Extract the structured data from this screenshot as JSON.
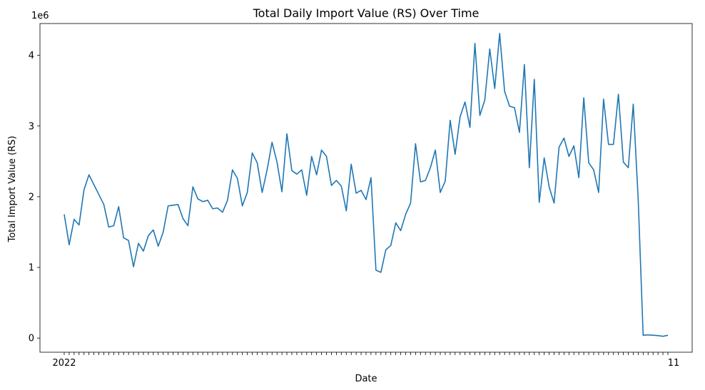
{
  "chart_data": {
    "type": "line",
    "title": "Total Daily Import Value (RS) Over Time",
    "xlabel": "Date",
    "ylabel": "Total Import Value (RS)",
    "y_offset_label": "1e6",
    "y_ticks": [
      0,
      1,
      2,
      3,
      4
    ],
    "ylim": [
      -0.2,
      4.45
    ],
    "grid": false,
    "legend": "none",
    "line_color": "#1f77b4",
    "x_ticklabels_note": "date tick labels are fully overlapped and illegible; fragments visible: 2022, 11",
    "x_first_label": "2022",
    "x_last_label": "11",
    "series": [
      {
        "values": [
          1.75,
          1.32,
          1.68,
          1.6,
          2.1,
          2.31,
          2.17,
          2.03,
          1.89,
          1.57,
          1.59,
          1.86,
          1.42,
          1.38,
          1.01,
          1.34,
          1.23,
          1.45,
          1.53,
          1.3,
          1.5,
          1.87,
          1.88,
          1.89,
          1.69,
          1.59,
          2.14,
          1.97,
          1.93,
          1.95,
          1.83,
          1.84,
          1.78,
          1.95,
          2.38,
          2.26,
          1.87,
          2.06,
          2.62,
          2.48,
          2.06,
          2.38,
          2.77,
          2.49,
          2.07,
          2.89,
          2.37,
          2.32,
          2.38,
          2.02,
          2.57,
          2.31,
          2.66,
          2.57,
          2.16,
          2.23,
          2.15,
          1.8,
          2.46,
          2.05,
          2.09,
          1.96,
          2.27,
          0.96,
          0.93,
          1.25,
          1.31,
          1.63,
          1.52,
          1.75,
          1.91,
          2.75,
          2.21,
          2.23,
          2.41,
          2.66,
          2.06,
          2.22,
          3.08,
          2.6,
          3.13,
          3.34,
          2.98,
          4.17,
          3.15,
          3.37,
          4.09,
          3.53,
          4.31,
          3.49,
          3.28,
          3.26,
          2.91,
          3.87,
          2.41,
          3.66,
          1.92,
          2.55,
          2.14,
          1.91,
          2.7,
          2.83,
          2.57,
          2.72,
          2.27,
          3.4,
          2.48,
          2.38,
          2.06,
          3.38,
          2.74,
          2.74,
          3.45,
          2.49,
          2.41,
          3.31,
          1.96,
          0.04,
          0.045,
          0.04,
          0.035,
          0.025,
          0.04
        ]
      }
    ]
  }
}
